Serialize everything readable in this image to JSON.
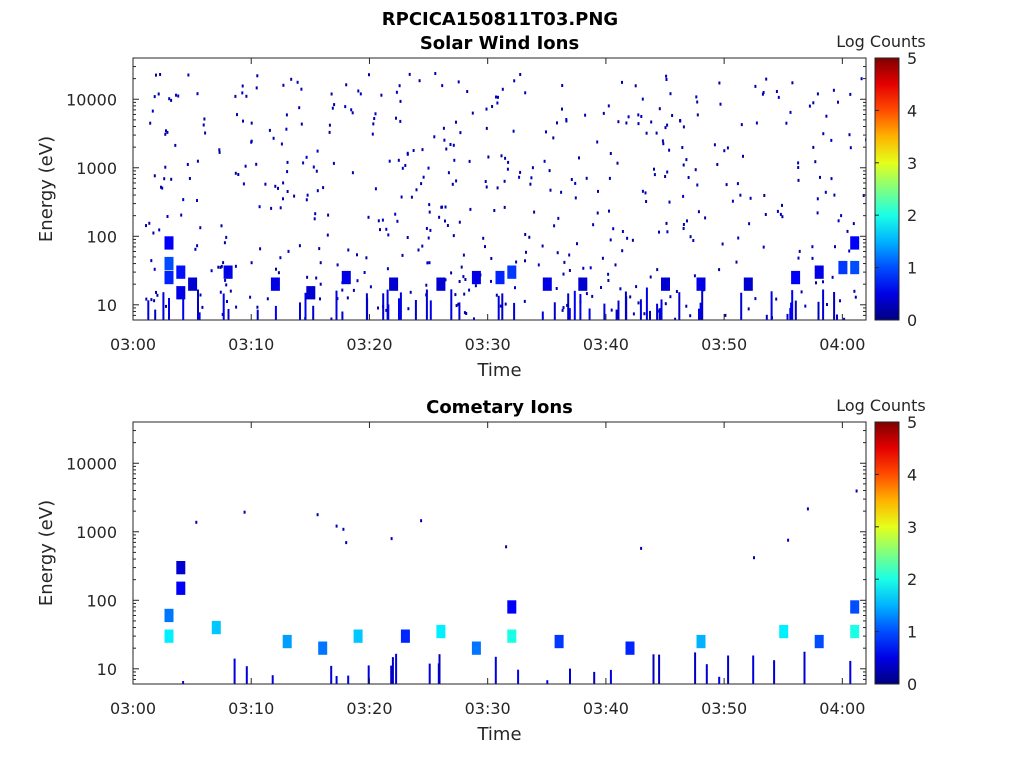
{
  "figure": {
    "title": "RPCICA150811T03.PNG"
  },
  "chart_data": [
    {
      "type": "heatmap",
      "title": "Solar Wind Ions",
      "xlabel": "Time",
      "ylabel": "Energy (eV)",
      "yscale": "log",
      "ylim": [
        6,
        40000
      ],
      "xlim": [
        "03:00",
        "04:02"
      ],
      "x_ticks": [
        "03:00",
        "03:10",
        "03:20",
        "03:30",
        "03:40",
        "03:50",
        "04:00"
      ],
      "y_ticks": [
        "10",
        "100",
        "1000",
        "10000"
      ],
      "colorbar": {
        "label": "Log Counts",
        "min": 0,
        "max": 5,
        "ticks": [
          "0",
          "1",
          "2",
          "3",
          "4",
          "5"
        ],
        "colormap": "jet"
      },
      "cells": [
        [
          "03:03",
          40,
          1.0
        ],
        [
          "03:03",
          25,
          0.8
        ],
        [
          "03:03",
          80,
          0.6
        ],
        [
          "03:04",
          30,
          0.7
        ],
        [
          "03:04",
          15,
          0.5
        ],
        [
          "03:05",
          20,
          0.4
        ],
        [
          "03:08",
          30,
          0.5
        ],
        [
          "03:12",
          20,
          0.5
        ],
        [
          "03:15",
          15,
          0.4
        ],
        [
          "03:18",
          25,
          0.5
        ],
        [
          "03:22",
          20,
          0.4
        ],
        [
          "03:26",
          20,
          0.4
        ],
        [
          "03:29",
          25,
          0.5
        ],
        [
          "03:31",
          25,
          0.8
        ],
        [
          "03:32",
          30,
          0.9
        ],
        [
          "03:35",
          20,
          0.5
        ],
        [
          "03:38",
          20,
          0.4
        ],
        [
          "03:45",
          20,
          0.4
        ],
        [
          "03:48",
          20,
          0.5
        ],
        [
          "03:52",
          20,
          0.4
        ],
        [
          "03:56",
          25,
          0.6
        ],
        [
          "03:58",
          30,
          0.5
        ],
        [
          "04:00",
          35,
          0.9
        ],
        [
          "04:01",
          35,
          1.0
        ],
        [
          "04:01",
          80,
          0.6
        ]
      ],
      "sparse_counts": "scattered single-count pixels from 6 eV to 30000 eV across 03:01–04:02"
    },
    {
      "type": "heatmap",
      "title": "Cometary Ions",
      "xlabel": "Time",
      "ylabel": "Energy (eV)",
      "yscale": "log",
      "ylim": [
        6,
        40000
      ],
      "xlim": [
        "03:00",
        "04:02"
      ],
      "x_ticks": [
        "03:00",
        "03:10",
        "03:20",
        "03:30",
        "03:40",
        "03:50",
        "04:00"
      ],
      "y_ticks": [
        "10",
        "100",
        "1000",
        "10000"
      ],
      "colorbar": {
        "label": "Log Counts",
        "min": 0,
        "max": 5,
        "ticks": [
          "0",
          "1",
          "2",
          "3",
          "4",
          "5"
        ],
        "colormap": "jet"
      },
      "cells": [
        [
          "03:03",
          30,
          1.8
        ],
        [
          "03:03",
          60,
          1.2
        ],
        [
          "03:04",
          150,
          0.6
        ],
        [
          "03:04",
          300,
          0.4
        ],
        [
          "03:07",
          40,
          1.6
        ],
        [
          "03:13",
          25,
          1.4
        ],
        [
          "03:16",
          20,
          1.2
        ],
        [
          "03:19",
          30,
          1.6
        ],
        [
          "03:23",
          30,
          0.8
        ],
        [
          "03:26",
          35,
          1.8
        ],
        [
          "03:29",
          20,
          1.2
        ],
        [
          "03:32",
          30,
          2.0
        ],
        [
          "03:32",
          80,
          0.6
        ],
        [
          "03:36",
          25,
          0.9
        ],
        [
          "03:42",
          20,
          0.8
        ],
        [
          "03:48",
          25,
          1.5
        ],
        [
          "03:55",
          35,
          1.8
        ],
        [
          "03:58",
          25,
          1.0
        ],
        [
          "04:01",
          35,
          2.0
        ],
        [
          "04:01",
          80,
          1.0
        ]
      ],
      "sparse_counts": "isolated single-count pixels near 200–5000 eV"
    }
  ]
}
